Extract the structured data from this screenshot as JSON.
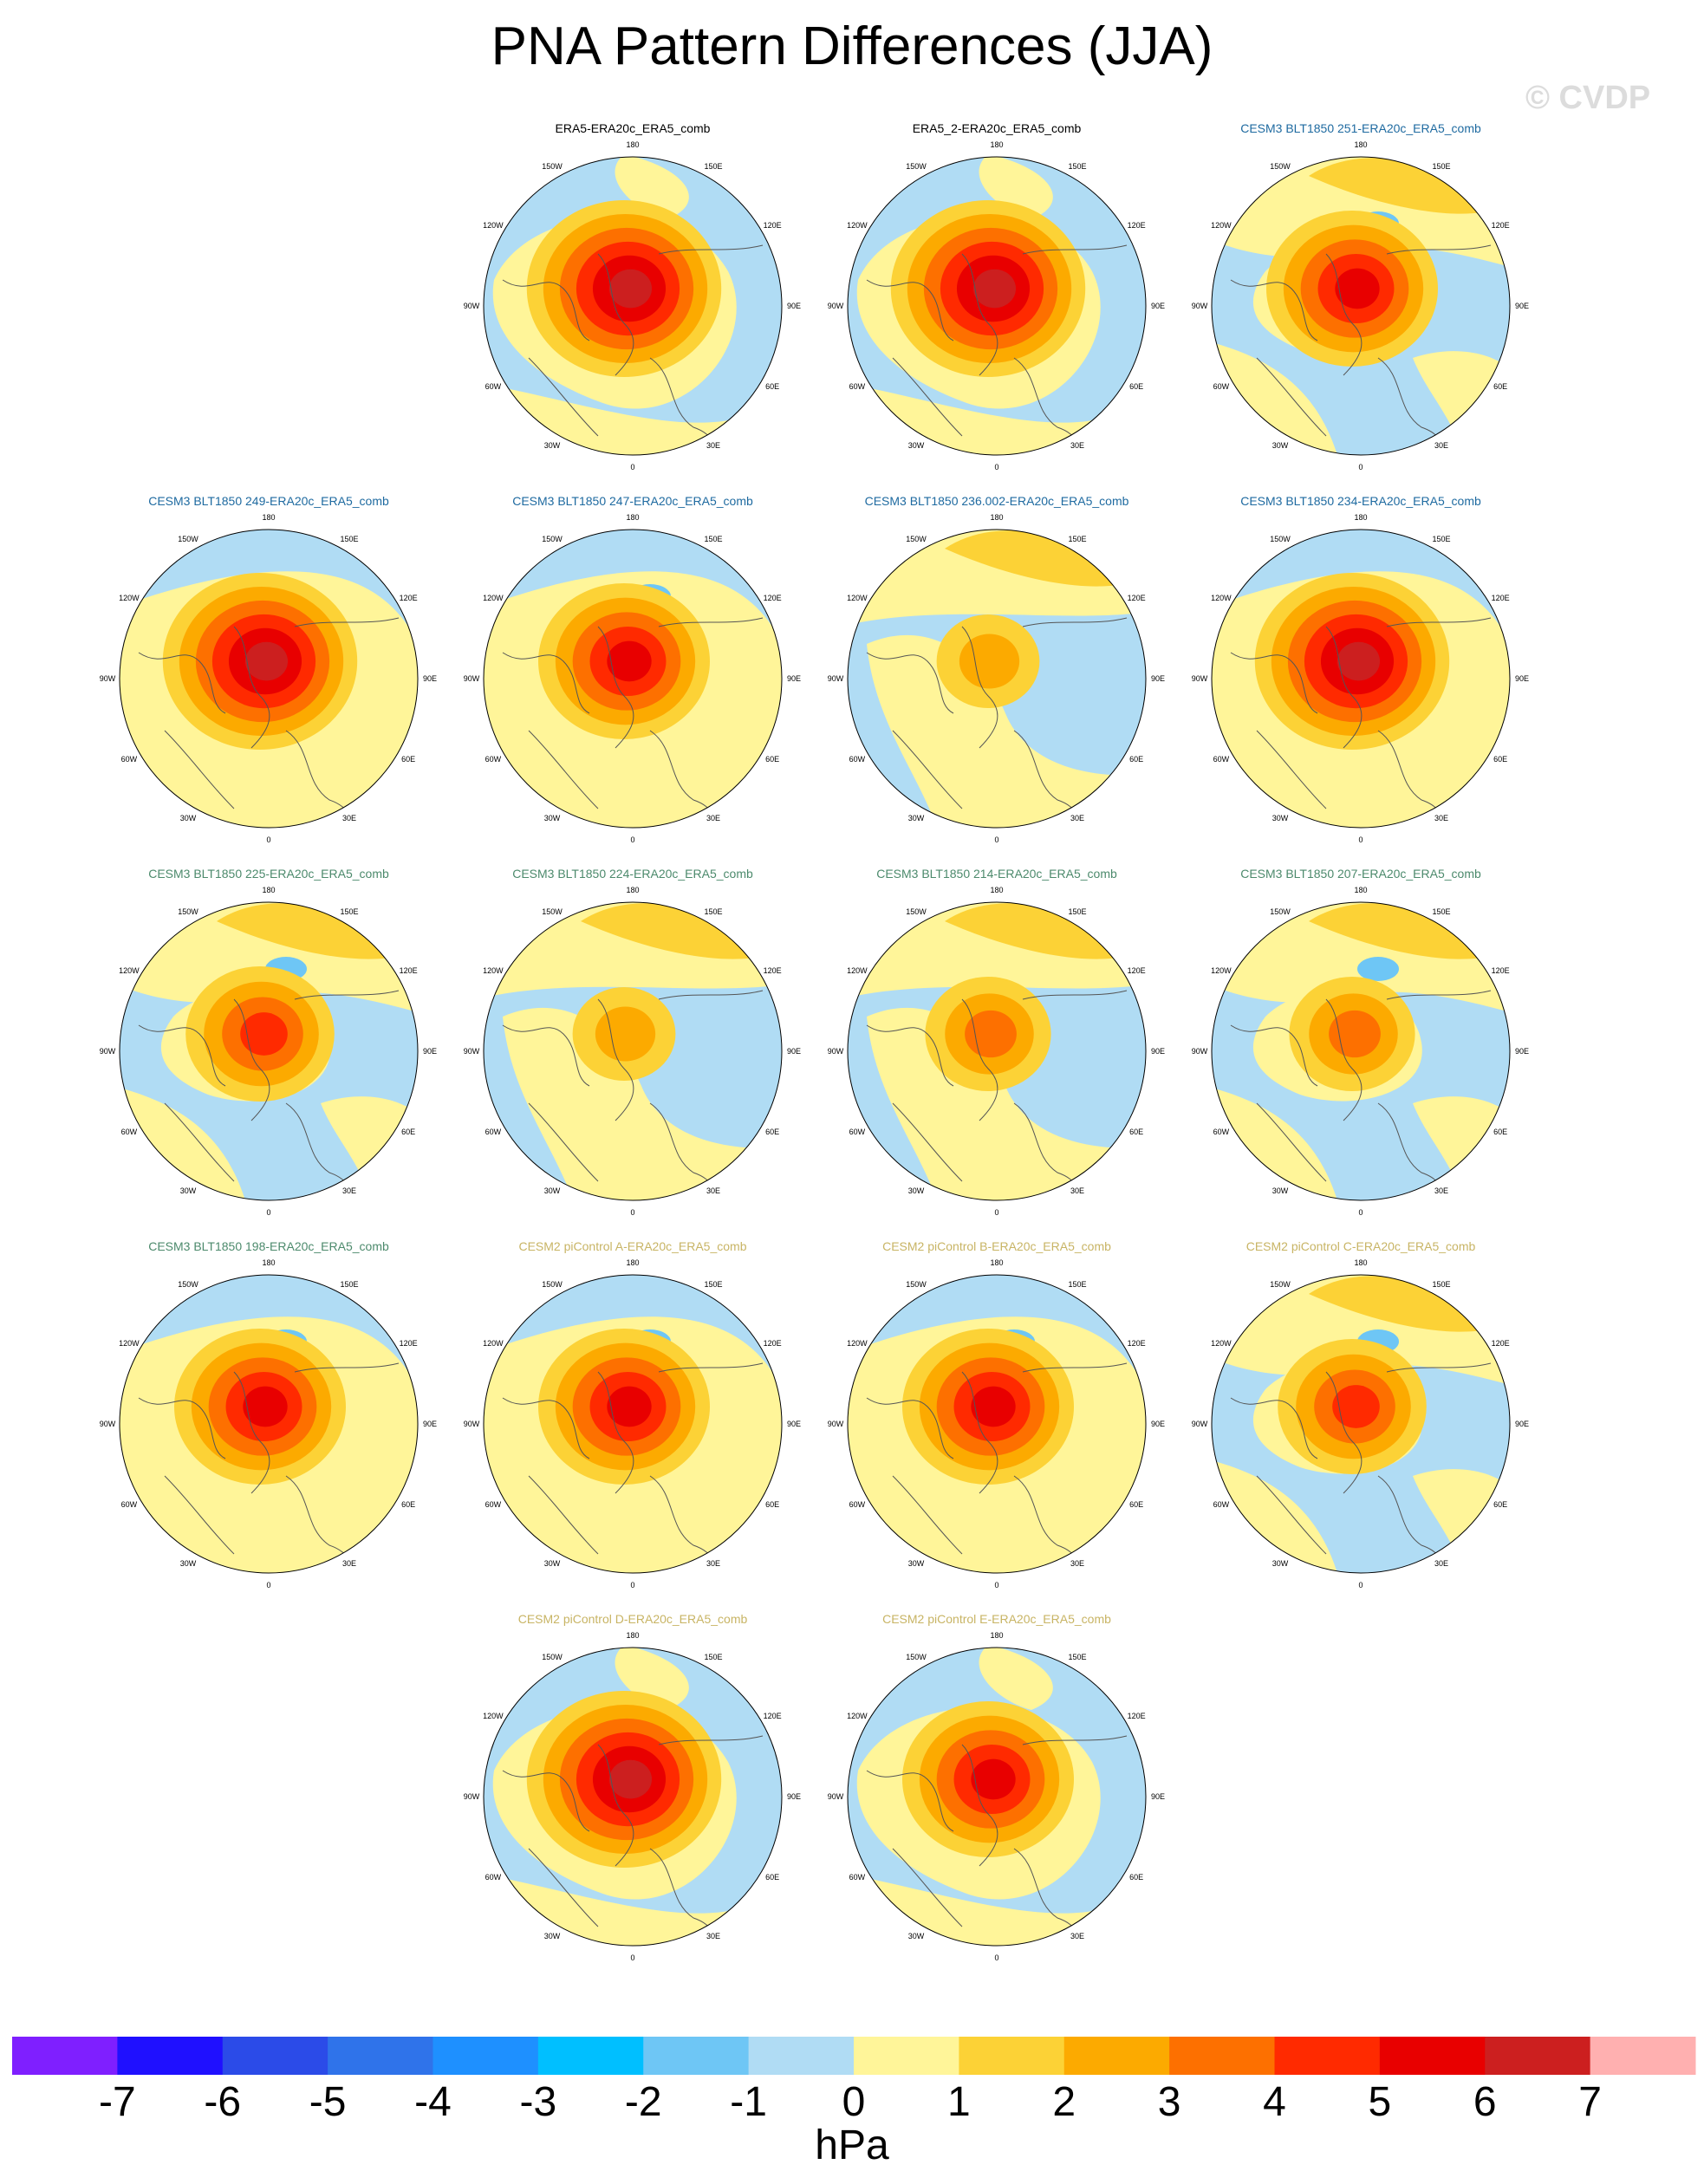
{
  "title": "PNA Pattern Differences (JJA)",
  "copyright": "© CVDP",
  "units": "hPa",
  "chart_data": {
    "type": "heatmap",
    "projection": "polar-stereographic-north",
    "season": "JJA",
    "longitude_labels": [
      "180",
      "150E",
      "120E",
      "90E",
      "60E",
      "30E",
      "0",
      "30W",
      "60W",
      "90W",
      "120W",
      "150W"
    ],
    "colorbar": {
      "levels": [
        -7,
        -6,
        -5,
        -4,
        -3,
        -2,
        -1,
        0,
        1,
        2,
        3,
        4,
        5,
        6,
        7
      ],
      "colors": [
        "#7f1fff",
        "#1f10ff",
        "#2b4be8",
        "#2f73ea",
        "#1e90ff",
        "#00bfff",
        "#6ec6f5",
        "#b0dcf4",
        "#fff599",
        "#fcd236",
        "#fcaa00",
        "#fd7000",
        "#ff2a00",
        "#e80000",
        "#cc1f1f",
        "#ffb0b0"
      ]
    },
    "panels": [
      {
        "title": "ERA5-ERA20c_ERA5_comb",
        "title_color": "#000000",
        "max_value": 6,
        "variant": "a"
      },
      {
        "title": "ERA5_2-ERA20c_ERA5_comb",
        "title_color": "#000000",
        "max_value": 6,
        "variant": "a"
      },
      {
        "title": "CESM3 BLT1850 251-ERA20c_ERA5_comb",
        "title_color": "#1e6aa0",
        "max_value": 5,
        "variant": "b"
      },
      {
        "title": "CESM3 BLT1850 249-ERA20c_ERA5_comb",
        "title_color": "#1e6aa0",
        "max_value": 6,
        "variant": "c"
      },
      {
        "title": "CESM3 BLT1850 247-ERA20c_ERA5_comb",
        "title_color": "#1e6aa0",
        "max_value": 5,
        "variant": "c"
      },
      {
        "title": "CESM3 BLT1850 236.002-ERA20c_ERA5_comb",
        "title_color": "#1e6aa0",
        "max_value": 2,
        "variant": "d"
      },
      {
        "title": "CESM3 BLT1850 234-ERA20c_ERA5_comb",
        "title_color": "#1e6aa0",
        "max_value": 6,
        "variant": "c"
      },
      {
        "title": "CESM3 BLT1850 225-ERA20c_ERA5_comb",
        "title_color": "#4c8a6c",
        "max_value": 4,
        "variant": "b"
      },
      {
        "title": "CESM3 BLT1850 224-ERA20c_ERA5_comb",
        "title_color": "#4c8a6c",
        "max_value": 2,
        "variant": "d"
      },
      {
        "title": "CESM3 BLT1850 214-ERA20c_ERA5_comb",
        "title_color": "#4c8a6c",
        "max_value": 3,
        "variant": "d"
      },
      {
        "title": "CESM3 BLT1850 207-ERA20c_ERA5_comb",
        "title_color": "#4c8a6c",
        "max_value": 3,
        "variant": "b"
      },
      {
        "title": "CESM3 BLT1850 198-ERA20c_ERA5_comb",
        "title_color": "#4c8a6c",
        "max_value": 5,
        "variant": "c"
      },
      {
        "title": "CESM2 piControl A-ERA20c_ERA5_comb",
        "title_color": "#c8b464",
        "max_value": 5,
        "variant": "c"
      },
      {
        "title": "CESM2 piControl B-ERA20c_ERA5_comb",
        "title_color": "#c8b464",
        "max_value": 5,
        "variant": "c"
      },
      {
        "title": "CESM2 piControl C-ERA20c_ERA5_comb",
        "title_color": "#c8b464",
        "max_value": 4,
        "variant": "b"
      },
      {
        "title": "CESM2 piControl D-ERA20c_ERA5_comb",
        "title_color": "#c8b464",
        "max_value": 6,
        "variant": "a"
      },
      {
        "title": "CESM2 piControl E-ERA20c_ERA5_comb",
        "title_color": "#c8b464",
        "max_value": 5,
        "variant": "a"
      }
    ]
  }
}
